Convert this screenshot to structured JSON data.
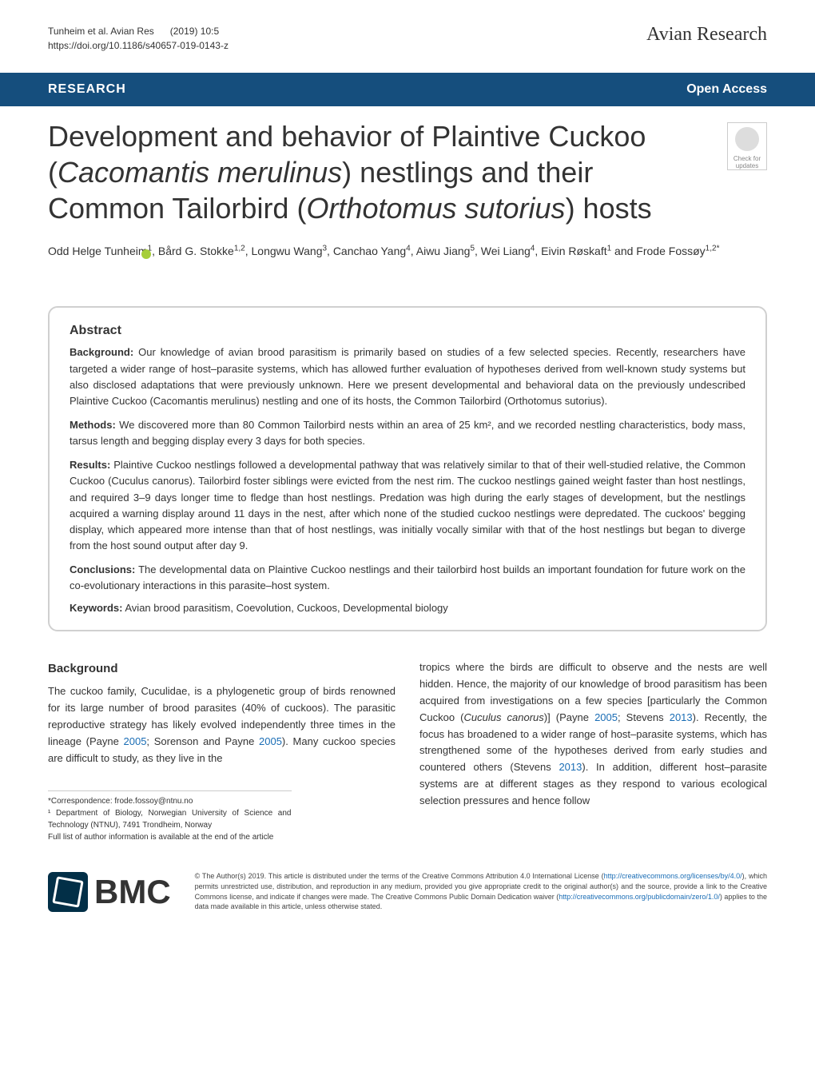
{
  "header": {
    "citation_line1": "Tunheim et al. Avian Res",
    "citation_year": "(2019) 10:5",
    "doi": "https://doi.org/10.1186/s40657-019-0143-z",
    "journal_name": "Avian Research"
  },
  "banner": {
    "category": "RESEARCH",
    "access": "Open Access"
  },
  "article": {
    "title_html": "Development and behavior of Plaintive Cuckoo (<em>Cacomantis merulinus</em>) nestlings and their Common Tailorbird (<em>Orthotomus sutorius</em>) hosts",
    "crossmark_text": "Check for updates",
    "authors_html": "Odd Helge Tunheim<sup>1</sup>, Bård G. Stokke<sup>1,2</sup>, Longwu Wang<sup>3</sup>, Canchao Yang<sup>4</sup>, Aiwu Jiang<sup>5</sup>, Wei Liang<sup>4</sup>, Eivin Røskaft<sup>1</sup> and Frode Fossøy<sup>1,2*</sup>"
  },
  "abstract": {
    "heading": "Abstract",
    "background_label": "Background:",
    "background_text": " Our knowledge of avian brood parasitism is primarily based on studies of a few selected species. Recently, researchers have targeted a wider range of host–parasite systems, which has allowed further evaluation of hypotheses derived from well-known study systems but also disclosed adaptations that were previously unknown. Here we present developmental and behavioral data on the previously undescribed Plaintive Cuckoo (Cacomantis merulinus) nestling and one of its hosts, the Common Tailorbird (Orthotomus sutorius).",
    "methods_label": "Methods:",
    "methods_text": " We discovered more than 80 Common Tailorbird nests within an area of 25 km², and we recorded nestling characteristics, body mass, tarsus length and begging display every 3 days for both species.",
    "results_label": "Results:",
    "results_text": " Plaintive Cuckoo nestlings followed a developmental pathway that was relatively similar to that of their well-studied relative, the Common Cuckoo (Cuculus canorus). Tailorbird foster siblings were evicted from the nest rim. The cuckoo nestlings gained weight faster than host nestlings, and required 3–9 days longer time to fledge than host nestlings. Predation was high during the early stages of development, but the nestlings acquired a warning display around 11 days in the nest, after which none of the studied cuckoo nestlings were depredated. The cuckoos' begging display, which appeared more intense than that of host nestlings, was initially vocally similar with that of the host nestlings but began to diverge from the host sound output after day 9.",
    "conclusions_label": "Conclusions:",
    "conclusions_text": " The developmental data on Plaintive Cuckoo nestlings and their tailorbird host builds an important foundation for future work on the co-evolutionary interactions in this parasite–host system.",
    "keywords_label": "Keywords:",
    "keywords_text": " Avian brood parasitism, Coevolution, Cuckoos, Developmental biology"
  },
  "body": {
    "background_heading": "Background",
    "left_column_html": "The cuckoo family, Cuculidae, is a phylogenetic group of birds renowned for its large number of brood parasites (40% of cuckoos). The parasitic reproductive strategy has likely evolved independently three times in the lineage (Payne <span class='col-link'>2005</span>; Sorenson and Payne <span class='col-link'>2005</span>). Many cuckoo species are difficult to study, as they live in the",
    "right_column_html": "tropics where the birds are difficult to observe and the nests are well hidden. Hence, the majority of our knowledge of brood parasitism has been acquired from investigations on a few species [particularly the Common Cuckoo (<em>Cuculus canorus</em>)] (Payne <span class='col-link'>2005</span>; Stevens <span class='col-link'>2013</span>). Recently, the focus has broadened to a wider range of host–parasite systems, which has strengthened some of the hypotheses derived from early studies and countered others (Stevens <span class='col-link'>2013</span>). In addition, different host–parasite systems are at different stages as they respond to various ecological selection pressures and hence follow"
  },
  "correspondence": {
    "email_label": "*Correspondence:",
    "email": "frode.fossoy@ntnu.no",
    "affiliation": "¹ Department of Biology, Norwegian University of Science and Technology (NTNU), 7491 Trondheim, Norway",
    "full_list": "Full list of author information is available at the end of the article"
  },
  "footer": {
    "bmc_text": "BMC",
    "license_html": "© The Author(s) 2019. This article is distributed under the terms of the Creative Commons Attribution 4.0 International License (<a>http://creativecommons.org/licenses/by/4.0/</a>), which permits unrestricted use, distribution, and reproduction in any medium, provided you give appropriate credit to the original author(s) and the source, provide a link to the Creative Commons license, and indicate if changes were made. The Creative Commons Public Domain Dedication waiver (<a>http://creativecommons.org/publicdomain/zero/1.0/</a>) applies to the data made available in this article, unless otherwise stated."
  }
}
